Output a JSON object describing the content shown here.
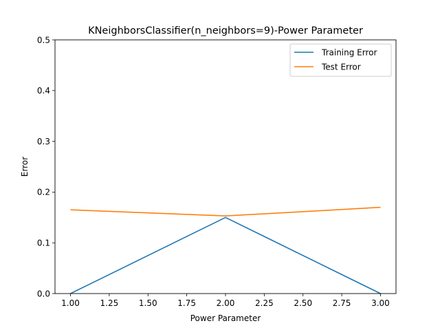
{
  "chart_data": {
    "type": "line",
    "title": "KNeighborsClassifier(n_neighbors=9)-Power Parameter",
    "xlabel": "Power Parameter",
    "ylabel": "Error",
    "xlim": [
      0.9,
      3.1
    ],
    "ylim": [
      0,
      0.5
    ],
    "x_ticks": [
      1.0,
      1.25,
      1.5,
      1.75,
      2.0,
      2.25,
      2.5,
      2.75,
      3.0
    ],
    "x_tick_labels": [
      "1.00",
      "1.25",
      "1.50",
      "1.75",
      "2.00",
      "2.25",
      "2.50",
      "2.75",
      "3.00"
    ],
    "y_ticks": [
      0.0,
      0.1,
      0.2,
      0.3,
      0.4,
      0.5
    ],
    "y_tick_labels": [
      "0.0",
      "0.1",
      "0.2",
      "0.3",
      "0.4",
      "0.5"
    ],
    "x": [
      1,
      2,
      3
    ],
    "series": [
      {
        "name": "Training Error",
        "color": "#1f77b4",
        "values": [
          0.0,
          0.15,
          0.0
        ]
      },
      {
        "name": "Test Error",
        "color": "#ff7f0e",
        "values": [
          0.165,
          0.153,
          0.17
        ]
      }
    ],
    "legend_position": "top-right",
    "grid": false
  }
}
